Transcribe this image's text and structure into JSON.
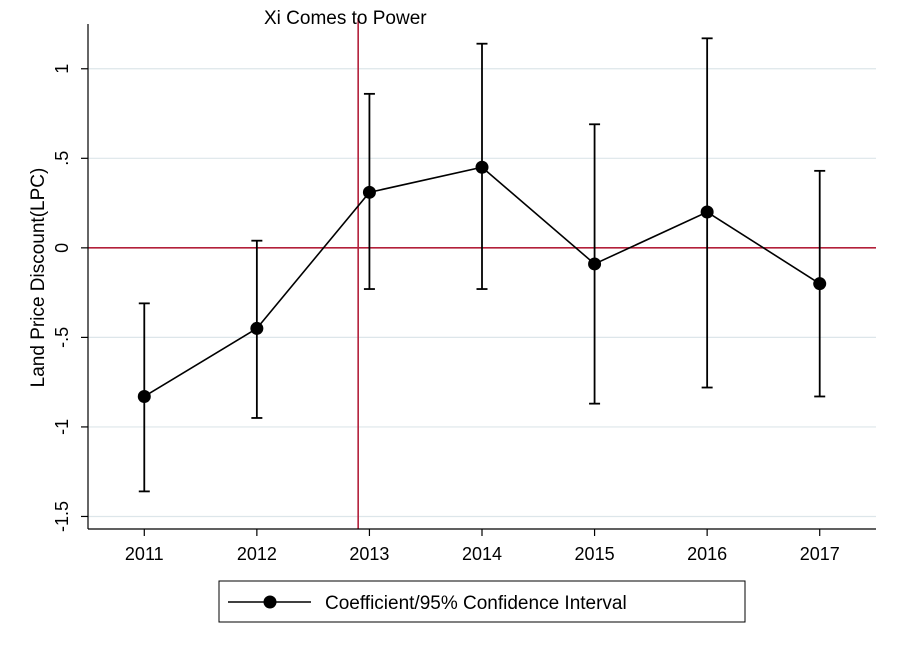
{
  "chart_data": {
    "type": "line",
    "ylabel": "Land Price Discount(LPC)",
    "xlabel": "",
    "x": [
      2011,
      2012,
      2013,
      2014,
      2015,
      2016,
      2017
    ],
    "x_tick_labels": [
      "2011",
      "2012",
      "2013",
      "2014",
      "2015",
      "2016",
      "2017"
    ],
    "xlim": [
      2010.5,
      2017.5
    ],
    "ylim": [
      -1.57,
      1.25
    ],
    "y_ticks": [
      -1.5,
      -1,
      -0.5,
      0,
      0.5,
      1
    ],
    "y_tick_labels": [
      "-1.5",
      "-1",
      "-.5",
      "0",
      ".5",
      "1"
    ],
    "grid": true,
    "series": [
      {
        "name": "Coefficient/95% Confidence Interval",
        "values": [
          -0.83,
          -0.45,
          0.31,
          0.45,
          -0.09,
          0.2,
          -0.2
        ],
        "ci_lower": [
          -1.36,
          -0.95,
          -0.23,
          -0.23,
          -0.87,
          -0.78,
          -0.83
        ],
        "ci_upper": [
          -0.31,
          0.04,
          0.86,
          1.14,
          0.69,
          1.17,
          0.43
        ]
      }
    ],
    "reference_lines": {
      "horizontal_y": 0,
      "vertical_x": 2012.9,
      "vertical_label": "Xi Comes to Power",
      "color": "#b3203a"
    },
    "legend": {
      "position": "bottom",
      "label": "Coefficient/95% Confidence Interval"
    },
    "colors": {
      "series": "#000000",
      "grid": "#dde6ea",
      "reference": "#b3203a"
    }
  }
}
